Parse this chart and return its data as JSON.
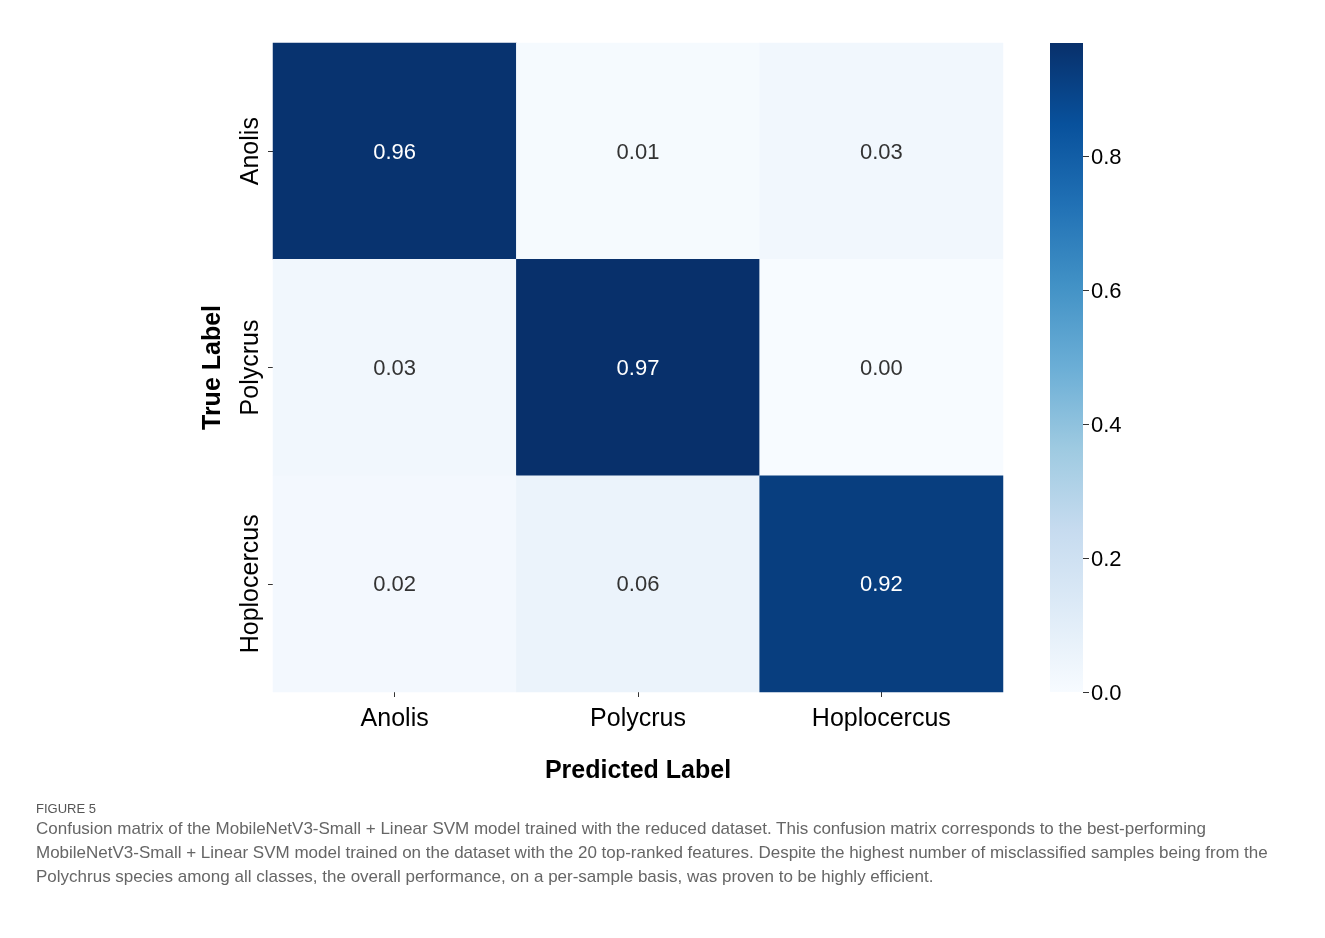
{
  "chart_data": {
    "type": "heatmap",
    "xlabel": "Predicted Label",
    "ylabel": "True Label",
    "categories": [
      "Anolis",
      "Polycrus",
      "Hoplocercus"
    ],
    "y_categories": [
      "Anolis",
      "Polycrus",
      "Hoplocercus"
    ],
    "cells": [
      [
        0.96,
        0.01,
        0.03
      ],
      [
        0.03,
        0.97,
        0.0
      ],
      [
        0.02,
        0.06,
        0.92
      ]
    ],
    "cell_labels": [
      [
        "0.96",
        "0.01",
        "0.03"
      ],
      [
        "0.03",
        "0.97",
        "0.00"
      ],
      [
        "0.02",
        "0.06",
        "0.92"
      ]
    ],
    "clim": [
      0,
      0.97
    ],
    "cticks": [
      {
        "value": 0,
        "label": "0.0"
      },
      {
        "value": 0.2,
        "label": "0.2"
      },
      {
        "value": 0.4,
        "label": "0.4"
      },
      {
        "value": 0.6,
        "label": "0.6"
      },
      {
        "value": 0.8,
        "label": "0.8"
      }
    ],
    "annotations": [
      "FIGURE 5",
      "Confusion matrix of the MobileNetV3-Small + Linear SVM model trained with the reduced dataset. This confusion matrix corresponds to the best-performing MobileNetV3-Small + Linear SVM model trained on the dataset with the 20 top-ranked features. Despite the highest number of misclassified samples being from the Polychrus species among all classes, the overall performance, on a per-sample basis, was proven to be highly efficient."
    ]
  }
}
